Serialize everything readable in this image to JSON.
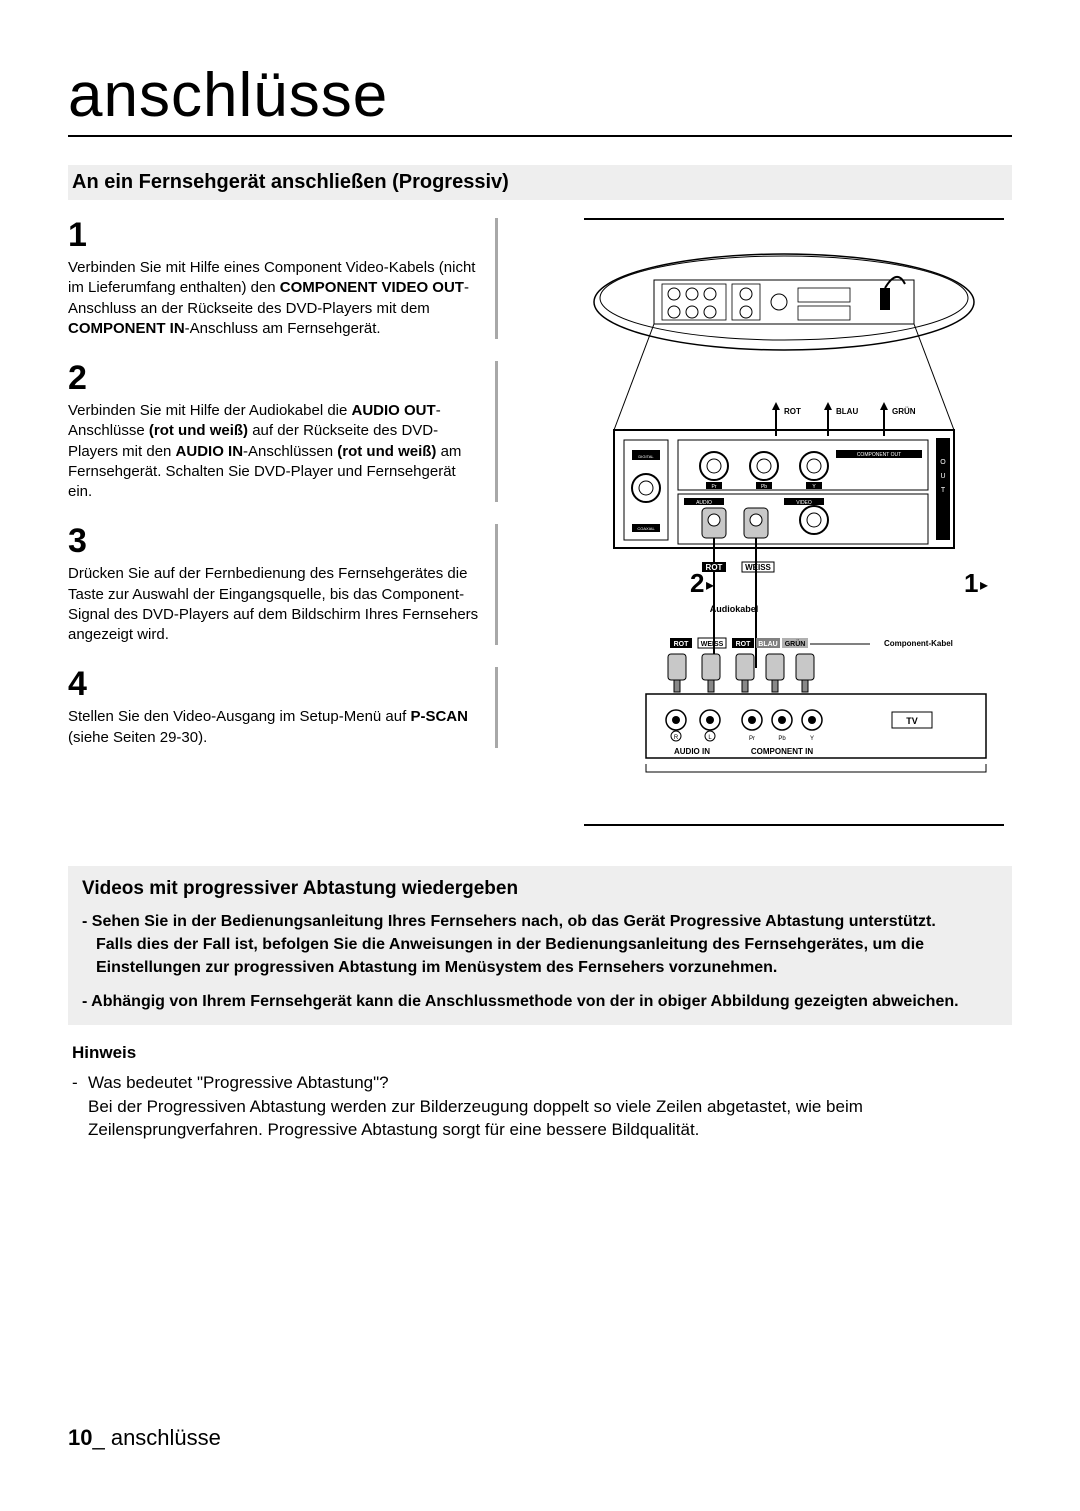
{
  "page": {
    "main_title": "anschlüsse",
    "section_heading": "An ein Fernsehgerät anschließen (Progressiv)",
    "footer_num": "10",
    "footer_text": "_ anschlüsse"
  },
  "steps": [
    {
      "num": "1",
      "html": "Verbinden Sie mit Hilfe eines Component Video-Kabels (nicht im Lieferumfang enthalten) den <b>COMPONENT VIDEO OUT</b>-Anschluss an der Rückseite des DVD-Players mit dem <b>COMPONENT IN</b>-Anschluss am Fernsehgerät."
    },
    {
      "num": "2",
      "html": "Verbinden Sie mit Hilfe der Audiokabel die <b>AUDIO OUT</b>-Anschlüsse <b>(rot und weiß)</b> auf der Rückseite des DVD-Players mit den <b>AUDIO IN</b>-Anschlüssen <b>(rot und weiß)</b> am Fernsehgerät. Schalten Sie DVD-Player und Fernsehgerät ein."
    },
    {
      "num": "3",
      "html": "Drücken Sie auf der Fernbedienung des Fernsehgerätes die Taste zur Auswahl der Eingangsquelle, bis das Component-Signal des DVD-Players auf dem Bildschirm Ihres Fernsehers angezeigt wird."
    },
    {
      "num": "4",
      "html": "Stellen Sie den Video-Ausgang im Setup-Menü auf <b>P-SCAN</b> (siehe Seiten 29-30)."
    }
  ],
  "progressive": {
    "title": "Videos mit progressiver Abtastung wiedergeben",
    "bullet1": "- Sehen Sie in der Bedienungsanleitung Ihres Fernsehers nach, ob das Gerät Progressive Abtastung unterstützt.",
    "bullet1b": "Falls dies der Fall ist, befolgen Sie die Anweisungen in der Bedienungsanleitung des Fernsehgerätes, um die Einstellungen zur progressiven Abtastung im Menüsystem des Fernsehers vorzunehmen.",
    "bullet2": "- Abhängig von Ihrem Fernsehgerät kann die Anschlussmethode von der in obiger Abbildung gezeigten abweichen."
  },
  "hinweis": {
    "title": "Hinweis",
    "q": "Was bedeutet \"Progressive Abtastung\"?",
    "a": "Bei der Progressiven Abtastung werden zur Bilderzeugung doppelt so viele Zeilen abgetastet, wie beim Zeilensprungverfahren. Progressive Abtastung sorgt für eine bessere Bildqualität."
  },
  "diagram": {
    "labels": {
      "rot": "ROT",
      "blau": "BLAU",
      "gruen": "GRÜN",
      "weiss": "WEISS",
      "audiokabel": "Audiokabel",
      "component_kabel": "Component-Kabel",
      "tv": "TV",
      "audio_in": "AUDIO IN",
      "component_in": "COMPONENT IN",
      "out": "OUT",
      "digital_out": "DIGITAL AUDIO OUT",
      "audio": "AUDIO",
      "video": "VIDEO",
      "component_out": "COMPONENT OUT",
      "coaxial": "COAXIAL",
      "pr": "Pr",
      "pb": "Pb",
      "y": "Y",
      "r": "R",
      "l": "L"
    },
    "markers": {
      "one": "1",
      "two": "2",
      "arrow": "▸"
    },
    "colors": {
      "line": "#000000",
      "fill_white": "#ffffff",
      "fill_gray": "#d8d8d8",
      "fill_gray_dark": "#888888",
      "fill_black": "#000000"
    }
  }
}
